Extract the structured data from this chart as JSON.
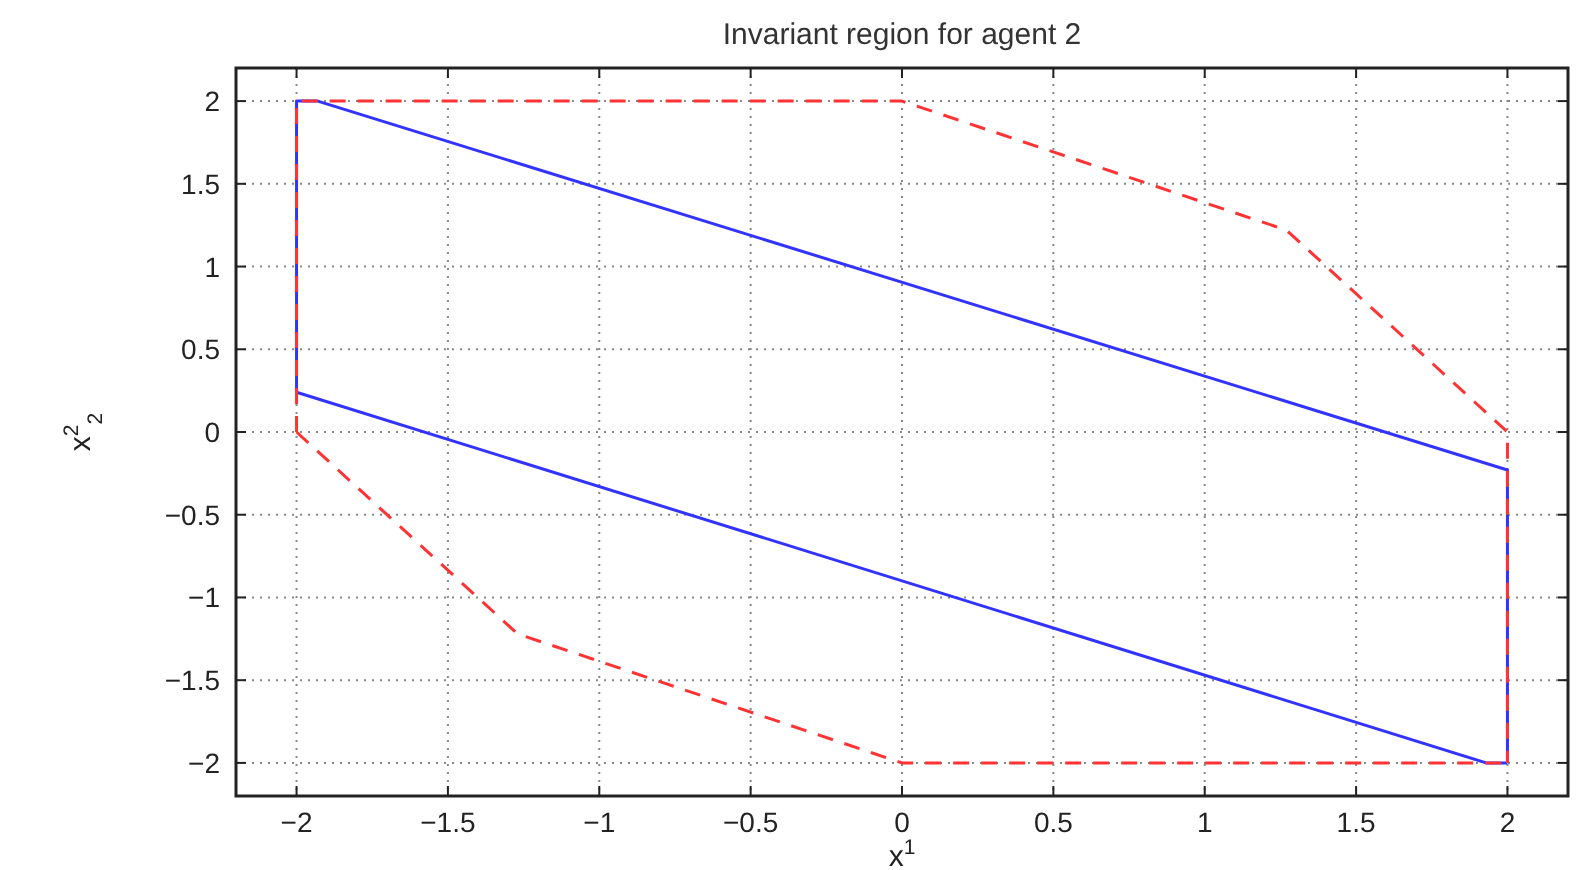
{
  "chart_data": {
    "type": "line",
    "title": "Invariant region for agent 2",
    "xlabel": "x$^{1}$",
    "ylabel": "x$^{2}$$_{2}$",
    "series": [
      {
        "color": "#3333ff",
        "line_style": "solid",
        "x": [
          -2,
          -2,
          -1.93,
          2,
          2
        ],
        "values": [
          0.24,
          2,
          2,
          -0.23,
          -2
        ]
      },
      {
        "color": "#3333ff",
        "line_style": "solid",
        "x": [
          -2,
          1.93,
          2
        ],
        "values": [
          0.24,
          -2,
          -2
        ]
      },
      {
        "color": "#ff3333",
        "line_style": "dashed",
        "x": [
          -2,
          -2,
          0,
          1.27,
          2,
          2
        ],
        "values": [
          0,
          2,
          2,
          1.22,
          0,
          -2
        ]
      },
      {
        "color": "#ff3333",
        "line_style": "dashed",
        "x": [
          -2,
          -1.27,
          0,
          2
        ],
        "values": [
          0,
          -1.22,
          -2,
          -2
        ]
      }
    ],
    "xlim": [
      -2.2,
      2.2
    ],
    "ylim": [
      -2.2,
      2.2
    ],
    "xticks": [
      -2,
      -1.5,
      -1,
      -0.5,
      0,
      0.5,
      1,
      1.5,
      2
    ],
    "yticks": [
      -2,
      -1.5,
      -1,
      -0.5,
      0,
      0.5,
      1,
      1.5,
      2
    ],
    "grid": true,
    "marker": "none"
  }
}
